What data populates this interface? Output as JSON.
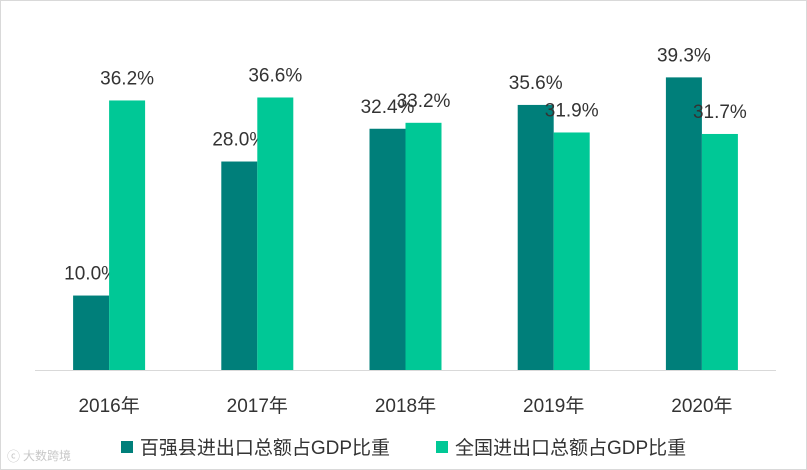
{
  "chart_data": {
    "type": "bar",
    "categories": [
      "2016年",
      "2017年",
      "2018年",
      "2019年",
      "2020年"
    ],
    "series": [
      {
        "name": "百强县进出口总额占GDP比重",
        "values": [
          10.0,
          28.0,
          32.4,
          35.6,
          39.3
        ],
        "labels": [
          "10.0%",
          "28.0%",
          "32.4%",
          "35.6%",
          "39.3%"
        ],
        "color": "#007f7a"
      },
      {
        "name": "全国进出口总额占GDP比重",
        "values": [
          36.2,
          36.6,
          33.2,
          31.9,
          31.7
        ],
        "labels": [
          "36.2%",
          "36.6%",
          "33.2%",
          "31.9%",
          "31.7%"
        ],
        "color": "#00c896"
      }
    ],
    "ylim": [
      0,
      41.5
    ],
    "grid": false,
    "legend_position": "bottom"
  },
  "watermark": {
    "text": "大数跨境"
  }
}
